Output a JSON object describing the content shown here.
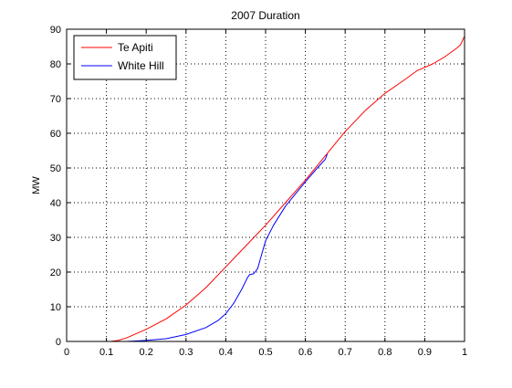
{
  "chart_data": {
    "type": "line",
    "title": "2007 Duration",
    "xlabel": "",
    "ylabel": "MW",
    "xlim": [
      0,
      1
    ],
    "ylim": [
      0,
      90
    ],
    "x_ticks": [
      "0",
      "0.1",
      "0.2",
      "0.3",
      "0.4",
      "0.5",
      "0.6",
      "0.7",
      "0.8",
      "0.9",
      "1"
    ],
    "y_ticks": [
      "0",
      "10",
      "20",
      "30",
      "40",
      "50",
      "60",
      "70",
      "80",
      "90"
    ],
    "grid": true,
    "legend_position": "top-left",
    "series": [
      {
        "name": "Te Apiti",
        "color": "#ff0000",
        "points": [
          [
            0.11,
            0
          ],
          [
            0.13,
            0.3
          ],
          [
            0.15,
            1
          ],
          [
            0.17,
            2
          ],
          [
            0.2,
            3.5
          ],
          [
            0.25,
            6.5
          ],
          [
            0.3,
            10.5
          ],
          [
            0.35,
            15.5
          ],
          [
            0.4,
            21.5
          ],
          [
            0.45,
            27.5
          ],
          [
            0.5,
            33.5
          ],
          [
            0.55,
            40
          ],
          [
            0.6,
            46.5
          ],
          [
            0.65,
            53.5
          ],
          [
            0.7,
            60.5
          ],
          [
            0.75,
            66.5
          ],
          [
            0.8,
            71.5
          ],
          [
            0.85,
            75.5
          ],
          [
            0.88,
            78
          ],
          [
            0.9,
            79
          ],
          [
            0.92,
            80
          ],
          [
            0.95,
            82
          ],
          [
            0.98,
            84.5
          ],
          [
            0.99,
            85.5
          ],
          [
            1,
            88
          ]
        ]
      },
      {
        "name": "White Hill",
        "color": "#0000ff",
        "points": [
          [
            0.15,
            0
          ],
          [
            0.2,
            0.3
          ],
          [
            0.25,
            0.8
          ],
          [
            0.3,
            2
          ],
          [
            0.35,
            4
          ],
          [
            0.38,
            6
          ],
          [
            0.4,
            8
          ],
          [
            0.42,
            11
          ],
          [
            0.44,
            15
          ],
          [
            0.455,
            18.5
          ],
          [
            0.46,
            19.3
          ],
          [
            0.47,
            19.5
          ],
          [
            0.48,
            21
          ],
          [
            0.49,
            25
          ],
          [
            0.5,
            29
          ],
          [
            0.52,
            33.5
          ],
          [
            0.55,
            39
          ],
          [
            0.6,
            46
          ],
          [
            0.63,
            50
          ],
          [
            0.65,
            52.5
          ],
          [
            0.655,
            54
          ]
        ]
      }
    ]
  }
}
